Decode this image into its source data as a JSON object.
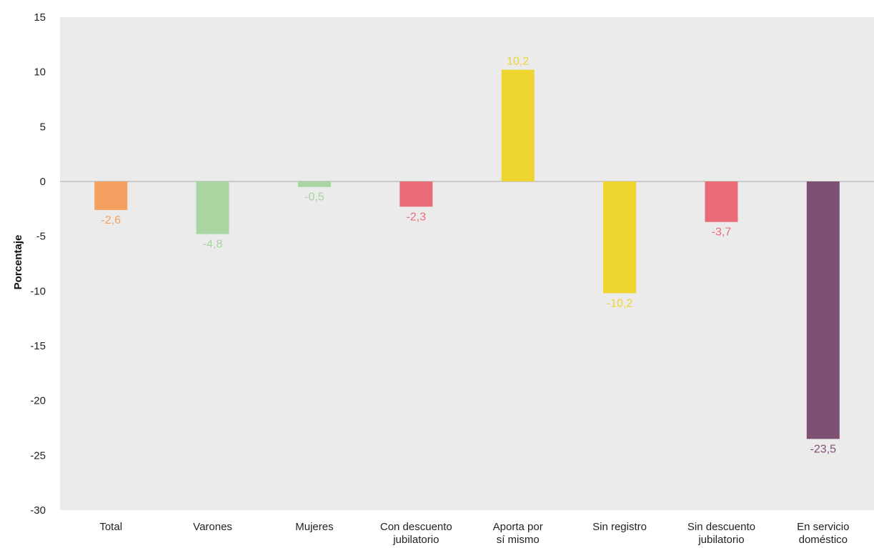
{
  "chart_data": {
    "type": "bar",
    "ylabel": "Porcentaje",
    "ylim": [
      -30,
      15
    ],
    "yticks": [
      15,
      10,
      5,
      0,
      -5,
      -10,
      -15,
      -20,
      -25,
      -30
    ],
    "ytick_labels": [
      "15",
      "10",
      "5",
      "0",
      "-5",
      "-10",
      "-15",
      "-20",
      "-25",
      "-30"
    ],
    "categories": [
      [
        "Total"
      ],
      [
        "Varones"
      ],
      [
        "Mujeres"
      ],
      [
        "Con descuento",
        "jubilatorio"
      ],
      [
        "Aporta por",
        "sí mismo"
      ],
      [
        "Sin registro"
      ],
      [
        "Sin descuento",
        "jubilatorio"
      ],
      [
        "En servicio",
        "doméstico"
      ]
    ],
    "values": [
      -2.6,
      -4.8,
      -0.5,
      -2.3,
      10.2,
      -10.2,
      -3.7,
      -23.5
    ],
    "value_labels": [
      "-2,6",
      "-4,8",
      "-0,5",
      "-2,3",
      "10,2",
      "-10,2",
      "-3,7",
      "-23,5"
    ],
    "colors": [
      "#F4A060",
      "#A8D5A0",
      "#A8D5A0",
      "#E96B78",
      "#EDD42F",
      "#EDD42F",
      "#E96B78",
      "#7E5074"
    ],
    "background": "#EBEBEB",
    "zero_line_color": "#AAAAAA",
    "grid": false,
    "legend": "none"
  }
}
